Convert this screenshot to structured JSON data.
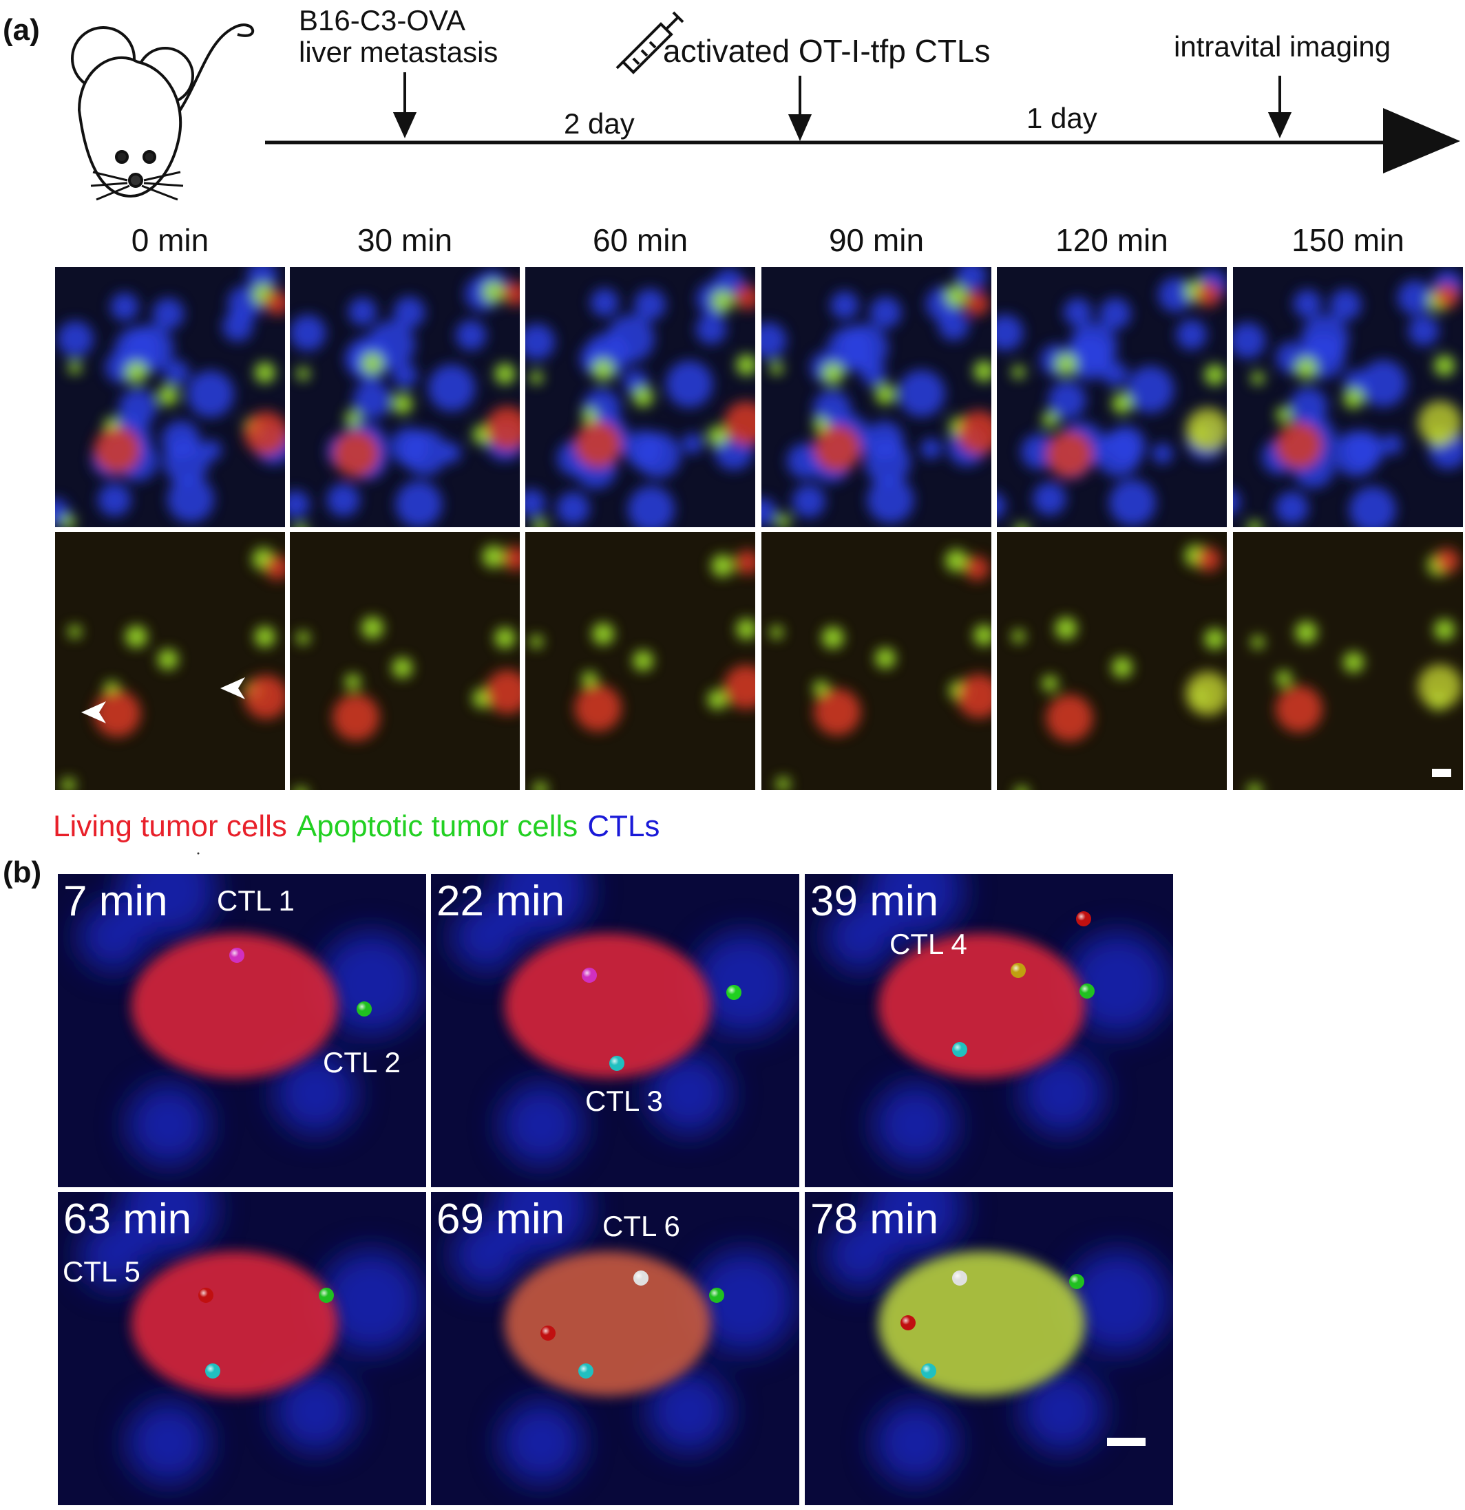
{
  "panel_a": {
    "label": "(a)",
    "events": [
      {
        "lines": [
          "B16-C3-OVA",
          "liver metastasis"
        ]
      },
      {
        "lines": [
          "activated OT-I-tfp CTLs"
        ]
      },
      {
        "lines": [
          "intravital imaging"
        ]
      }
    ],
    "intervals": [
      "2 day",
      "1 day"
    ],
    "times": [
      "0 min",
      "30 min",
      "60 min",
      "90 min",
      "120 min",
      "150 min"
    ],
    "legend": [
      {
        "text": "Living tumor cells",
        "color": "#e8202a"
      },
      {
        "text": "Apoptotic tumor cells",
        "color": "#22d022"
      },
      {
        "text": "CTLs",
        "color": "#1a1ad8"
      }
    ]
  },
  "panel_b": {
    "label": "(b)",
    "frames": [
      {
        "time": "7 min",
        "cells": [
          "CTL 1",
          "CTL 2"
        ]
      },
      {
        "time": "22 min",
        "cells": [
          "CTL 3"
        ]
      },
      {
        "time": "39 min",
        "cells": [
          "CTL 4"
        ]
      },
      {
        "time": "63 min",
        "cells": [
          "CTL 5"
        ]
      },
      {
        "time": "69 min",
        "cells": [
          "CTL 6"
        ]
      },
      {
        "time": "78 min",
        "cells": []
      }
    ]
  }
}
